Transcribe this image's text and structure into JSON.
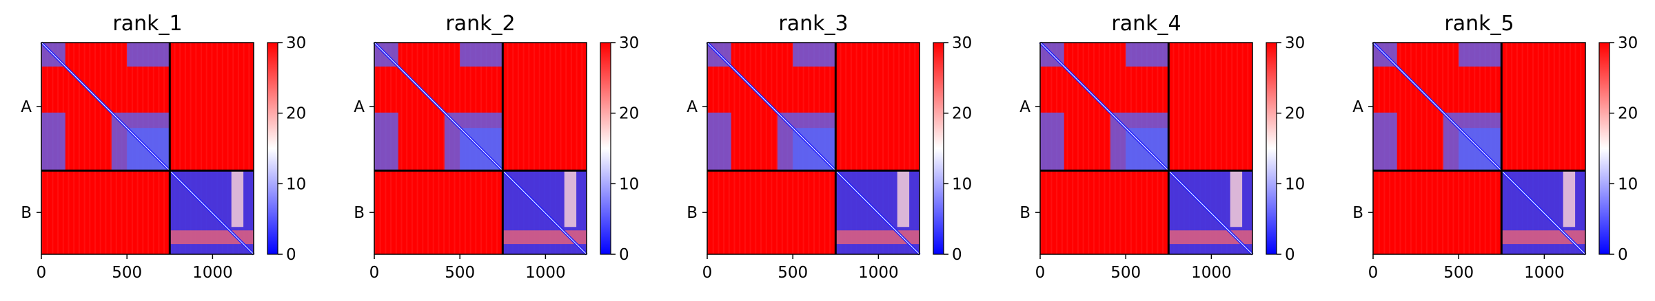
{
  "chart_data": {
    "type": "heatmap",
    "description_free": true,
    "colormap": {
      "low": "#0000ff",
      "mid": "#ffffff",
      "high": "#ff0000"
    },
    "vmin": 0,
    "vmax": 30,
    "colorbar_ticks": [
      0,
      10,
      20,
      30
    ],
    "x_ticks": [
      0,
      500,
      1000
    ],
    "xlim": [
      0,
      1240
    ],
    "ylim": [
      0,
      1240
    ],
    "chain_boundary": 750,
    "chains": [
      "A",
      "B"
    ],
    "panels": [
      {
        "title": "rank_1"
      },
      {
        "title": "rank_2"
      },
      {
        "title": "rank_3"
      },
      {
        "title": "rank_4"
      },
      {
        "title": "rank_5"
      }
    ],
    "low_error_blocks_chain_A": [
      [
        0,
        140,
        0,
        140
      ],
      [
        0,
        140,
        500,
        745
      ],
      [
        410,
        745,
        0,
        140
      ],
      [
        410,
        745,
        410,
        745
      ],
      [
        500,
        745,
        500,
        745
      ]
    ],
    "low_error_block_chain_B": [
      750,
      1240,
      750,
      1240
    ]
  }
}
